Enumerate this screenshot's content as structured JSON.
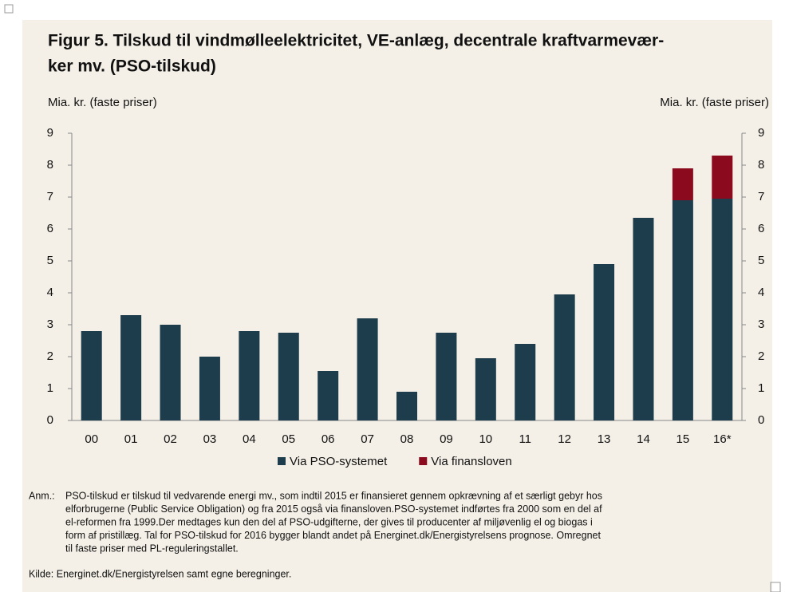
{
  "chart_data": {
    "type": "bar",
    "stacked": true,
    "title": [
      "Figur 5. Tilskud til vindmølleelektricitet, VE-anlæg, decentrale kraftvarmevær-",
      "ker mv. (PSO-tilskud)"
    ],
    "y_label": "Mia. kr. (faste priser)",
    "y2_label": "Mia. kr. (faste priser)",
    "categories": [
      "00",
      "01",
      "02",
      "03",
      "04",
      "05",
      "06",
      "07",
      "08",
      "09",
      "10",
      "11",
      "12",
      "13",
      "14",
      "15",
      "16*"
    ],
    "series": [
      {
        "name": "Via PSO-systemet",
        "color": "#1e3d4c",
        "values": [
          2.8,
          3.3,
          3.0,
          2.0,
          2.8,
          2.75,
          1.55,
          3.2,
          0.9,
          2.75,
          1.95,
          2.4,
          3.95,
          4.9,
          6.35,
          6.9,
          6.95
        ]
      },
      {
        "name": "Via finansloven",
        "color": "#8c0a1e",
        "values": [
          null,
          null,
          null,
          null,
          null,
          null,
          null,
          null,
          null,
          null,
          null,
          null,
          null,
          null,
          null,
          1.0,
          1.35
        ]
      }
    ],
    "ylim": [
      0,
      9
    ],
    "yticks": [
      0,
      1,
      2,
      3,
      4,
      5,
      6,
      7,
      8,
      9
    ],
    "y2lim": [
      0,
      9
    ],
    "y2ticks": [
      0,
      1,
      2,
      3,
      4,
      5,
      6,
      7,
      8,
      9
    ],
    "legend": "bottom",
    "note_label": "Anm.:",
    "note": [
      "PSO-tilskud er tilskud til vedvarende energi mv., som indtil 2015 er finansieret gennem opkrævning af et særligt gebyr hos",
      "elforbrugerne (Public Service Obligation) og fra 2015 også via finansloven.PSO-systemet indførtes fra 2000 som en del af",
      "el-reformen fra 1999.Der medtages kun den del af PSO-udgifterne, der gives til producenter af miljøvenlig el og biogas i",
      "form af pristillæg. Tal for PSO-tilskud for 2016 bygger blandt andet på Energinet.dk/Energistyrelsens prognose. Omregnet",
      "til faste priser med PL-reguleringstallet."
    ],
    "source": "Kilde: Energinet.dk/Energistyrelsen samt egne beregninger."
  }
}
